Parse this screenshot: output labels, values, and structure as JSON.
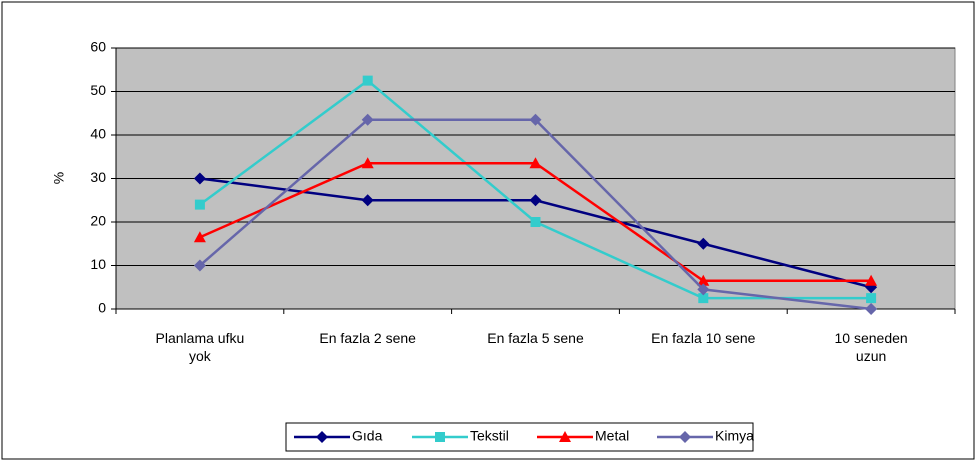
{
  "chart_data": {
    "type": "line",
    "y_label": "%",
    "categories": [
      "Planlama ufku\nyok",
      "En fazla 2 sene",
      "En fazla 5 sene",
      "En fazla 10 sene",
      "10 seneden\nuzun"
    ],
    "series": [
      {
        "name": "Gıda",
        "color": "#000080",
        "marker": "diamond",
        "values": [
          30,
          25,
          25,
          15,
          5
        ]
      },
      {
        "name": "Tekstil",
        "color": "#33cccc",
        "marker": "square",
        "values": [
          24,
          52.5,
          20,
          2.5,
          2.5
        ]
      },
      {
        "name": "Metal",
        "color": "#ff0000",
        "marker": "triangle",
        "values": [
          16.5,
          33.5,
          33.5,
          6.5,
          6.5
        ]
      },
      {
        "name": "Kimya",
        "color": "#6666aa",
        "marker": "diamond",
        "values": [
          10,
          43.5,
          43.5,
          4.5,
          0
        ]
      }
    ],
    "ylim": [
      0,
      60
    ],
    "yticks": [
      0,
      10,
      20,
      30,
      40,
      50,
      60
    ],
    "grid": true,
    "legend": "bottom",
    "plot_background": "#c0c0c0"
  }
}
